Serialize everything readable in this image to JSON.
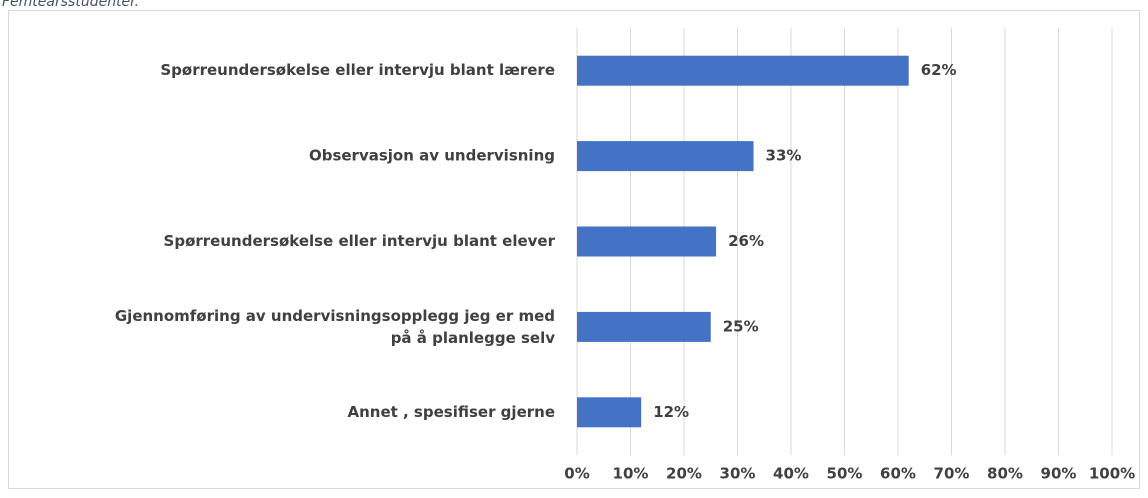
{
  "chart_data": {
    "type": "bar",
    "orientation": "horizontal",
    "subtitle": "Femteårsstudenter.",
    "categories": [
      "Spørreundersøkelse eller intervju blant lærere",
      "Observasjon av undervisning",
      "Spørreundersøkelse eller intervju blant elever",
      "Gjennomføring av undervisningsopplegg jeg er med\npå å planlegge selv",
      "Annet , spesifiser gjerne"
    ],
    "values": [
      62,
      33,
      26,
      25,
      12
    ],
    "value_labels": [
      "62%",
      "33%",
      "26%",
      "25%",
      "12%"
    ],
    "color": "#4472c4",
    "xlim": [
      0,
      100
    ],
    "xticks": [
      {
        "value": 0,
        "label": "0%"
      },
      {
        "value": 10,
        "label": "10%"
      },
      {
        "value": 20,
        "label": "20%"
      },
      {
        "value": 30,
        "label": "30%"
      },
      {
        "value": 40,
        "label": "40%"
      },
      {
        "value": 50,
        "label": "50%"
      },
      {
        "value": 60,
        "label": "60%"
      },
      {
        "value": 70,
        "label": "70%"
      },
      {
        "value": 80,
        "label": "80%"
      },
      {
        "value": 90,
        "label": "90%"
      },
      {
        "value": 100,
        "label": "100%"
      }
    ],
    "grid": true
  }
}
